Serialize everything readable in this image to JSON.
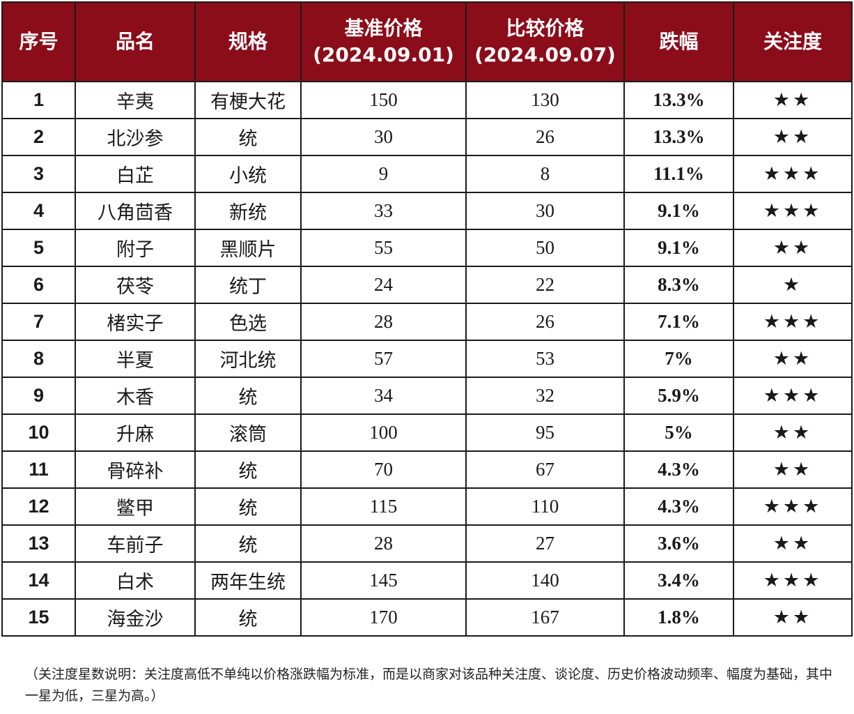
{
  "headers": {
    "index": "序号",
    "name": "品名",
    "spec": "规格",
    "base_price_label": "基准价格",
    "base_price_date": "(2024.09.01)",
    "compare_price_label": "比较价格",
    "compare_price_date": "(2024.09.07)",
    "drop": "跌幅",
    "attention": "关注度"
  },
  "rows": [
    {
      "index": "1",
      "name": "辛夷",
      "spec": "有梗大花",
      "base": "150",
      "compare": "130",
      "drop": "13.3%",
      "stars": "★★"
    },
    {
      "index": "2",
      "name": "北沙参",
      "spec": "统",
      "base": "30",
      "compare": "26",
      "drop": "13.3%",
      "stars": "★★"
    },
    {
      "index": "3",
      "name": "白芷",
      "spec": "小统",
      "base": "9",
      "compare": "8",
      "drop": "11.1%",
      "stars": "★★★"
    },
    {
      "index": "4",
      "name": "八角茴香",
      "spec": "新统",
      "base": "33",
      "compare": "30",
      "drop": "9.1%",
      "stars": "★★★"
    },
    {
      "index": "5",
      "name": "附子",
      "spec": "黑顺片",
      "base": "55",
      "compare": "50",
      "drop": "9.1%",
      "stars": "★★"
    },
    {
      "index": "6",
      "name": "茯苓",
      "spec": "统丁",
      "base": "24",
      "compare": "22",
      "drop": "8.3%",
      "stars": "★"
    },
    {
      "index": "7",
      "name": "楮实子",
      "spec": "色选",
      "base": "28",
      "compare": "26",
      "drop": "7.1%",
      "stars": "★★★"
    },
    {
      "index": "8",
      "name": "半夏",
      "spec": "河北统",
      "base": "57",
      "compare": "53",
      "drop": "7%",
      "stars": "★★"
    },
    {
      "index": "9",
      "name": "木香",
      "spec": "统",
      "base": "34",
      "compare": "32",
      "drop": "5.9%",
      "stars": "★★★"
    },
    {
      "index": "10",
      "name": "升麻",
      "spec": "滚筒",
      "base": "100",
      "compare": "95",
      "drop": "5%",
      "stars": "★★"
    },
    {
      "index": "11",
      "name": "骨碎补",
      "spec": "统",
      "base": "70",
      "compare": "67",
      "drop": "4.3%",
      "stars": "★★"
    },
    {
      "index": "12",
      "name": "鳖甲",
      "spec": "统",
      "base": "115",
      "compare": "110",
      "drop": "4.3%",
      "stars": "★★★"
    },
    {
      "index": "13",
      "name": "车前子",
      "spec": "统",
      "base": "28",
      "compare": "27",
      "drop": "3.6%",
      "stars": "★★"
    },
    {
      "index": "14",
      "name": "白术",
      "spec": "两年生统",
      "base": "145",
      "compare": "140",
      "drop": "3.4%",
      "stars": "★★★"
    },
    {
      "index": "15",
      "name": "海金沙",
      "spec": "统",
      "base": "170",
      "compare": "167",
      "drop": "1.8%",
      "stars": "★★"
    }
  ],
  "footnote": "（关注度星数说明：关注度高低不单纯以价格涨跌幅为标准，而是以商家对该品种关注度、谈论度、历史价格波动频率、幅度为基础，其中一星为低，三星为高。）",
  "colors": {
    "header_bg": "#8b0d1a",
    "header_text": "#ffffff",
    "drop_text": "#21a24a",
    "star": "#f6b324"
  }
}
